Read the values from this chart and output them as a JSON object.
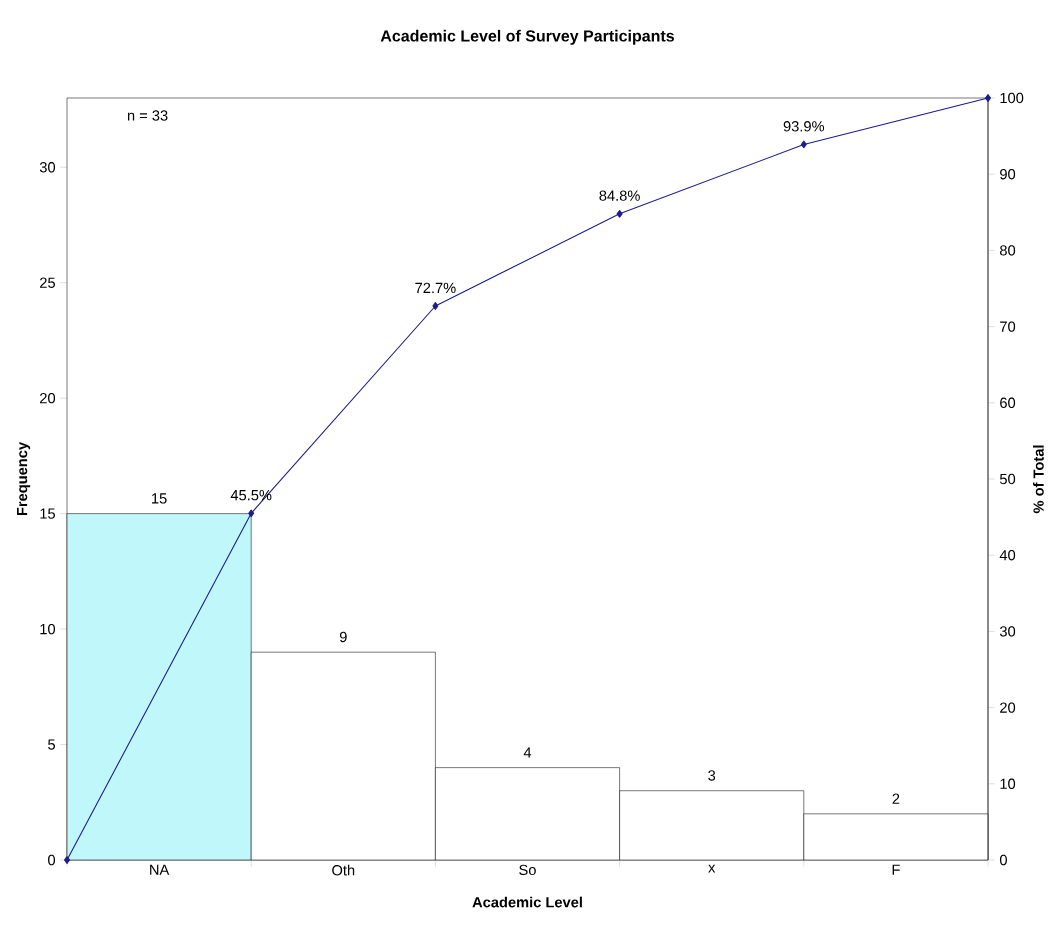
{
  "chart_data": {
    "type": "bar",
    "title": "Academic Level of Survey Participants",
    "xlabel": "Academic Level",
    "ylabel": "Frequency",
    "y2label": "% of Total",
    "annotations": [
      "n =  33"
    ],
    "categories": [
      null,
      "NA",
      null,
      "Oth",
      null,
      "So",
      null,
      "x",
      null,
      "F",
      null
    ],
    "ylim": [
      0,
      33
    ],
    "yticks": [
      0,
      5,
      10,
      15,
      20,
      25,
      30
    ],
    "y2lim": [
      0,
      100
    ],
    "y2ticks": [
      0,
      10,
      20,
      30,
      40,
      50,
      60,
      70,
      80,
      90,
      100
    ],
    "data_labels": true,
    "series": [
      {
        "values": [
          null,
          15,
          null,
          9,
          null,
          4,
          null,
          3,
          null,
          2,
          null
        ],
        "colors": [
          null,
          "#bff7fa",
          null,
          "#ffffff",
          null,
          "#ffffff",
          null,
          "#ffffff",
          null,
          "#ffffff",
          null
        ]
      },
      {
        "type": "line",
        "axis": "y2",
        "color": "#1c1c8a",
        "marker": "diamond",
        "line_style": "solid",
        "values": [
          0,
          null,
          45.5,
          null,
          72.7,
          null,
          84.8,
          null,
          93.9,
          null,
          100
        ],
        "value_labels": [
          null,
          null,
          "45.5%",
          null,
          "72.7%",
          null,
          "84.8%",
          null,
          "93.9%",
          null,
          null
        ]
      }
    ]
  }
}
